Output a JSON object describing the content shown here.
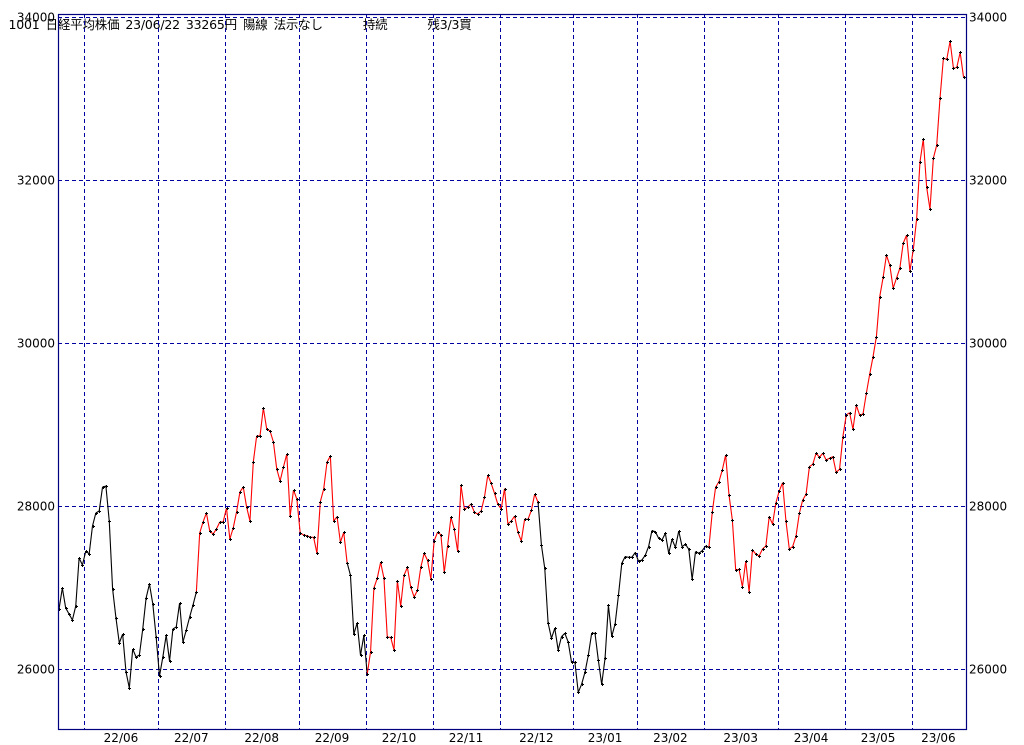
{
  "header": {
    "code": "1001",
    "name": "日経平均株価",
    "date": "23/06/22",
    "price": "33265円",
    "candle": "陽線",
    "signal": "法示なし",
    "state": "持続",
    "remaining": "残3/3買"
  },
  "chart_data": {
    "type": "line",
    "title": "",
    "xlabel": "",
    "ylabel": "",
    "ylim": [
      25260,
      34040
    ],
    "yticks": [
      26000,
      28000,
      30000,
      32000,
      34000
    ],
    "ytick_labels": [
      "26000",
      "28000",
      "30000",
      "32000",
      "34000"
    ],
    "x_tick_labels": [
      "22/06",
      "22/07",
      "22/08",
      "22/09",
      "22/10",
      "22/11",
      "22/12",
      "23/01",
      "23/02",
      "23/03",
      "23/04",
      "23/05",
      "23/06"
    ],
    "month_start_indices": [
      8,
      30,
      50,
      72,
      92,
      112,
      132,
      154,
      173,
      193,
      215,
      235,
      255
    ],
    "grid": true,
    "markers": "plus",
    "colors": {
      "up": "#ff0000",
      "down": "#000000",
      "grid": "#0000a0",
      "frame": "#000080",
      "marker": "#000000"
    },
    "segments": [
      {
        "trend": "down",
        "values": [
          26733,
          26994,
          26748,
          26675,
          26601,
          26773,
          27362,
          27276,
          27448,
          27411,
          27755,
          27914,
          27939,
          28233,
          28245,
          27816,
          26982,
          26626,
          26319,
          26429,
          25963,
          25767,
          26245,
          26147,
          26172,
          26491,
          26871,
          27043,
          26798,
          26392,
          25914,
          26147,
          26417,
          26098,
          26491,
          26515,
          26810,
          26331,
          26478,
          26638,
          26785,
          26945
        ]
      },
      {
        "trend": "up",
        "values": [
          27669,
          27804,
          27914,
          27693,
          27656,
          27718,
          27804,
          27804,
          27975,
          27595,
          27730,
          27926,
          28172,
          28233,
          27988,
          27816,
          28540,
          28859,
          28859,
          29203,
          28945,
          28920,
          28785,
          28454,
          28307,
          28479,
          28638,
          27877,
          28196,
          28086,
          27669,
          27644,
          27636,
          27616,
          27616,
          27420,
          28053,
          28205,
          28536,
          28613,
          27816,
          27869,
          27555,
          27677,
          27305
        ]
      },
      {
        "trend": "down",
        "values": [
          27150,
          26429,
          26564,
          26168,
          26413,
          25935
        ]
      },
      {
        "trend": "up",
        "values": [
          26209,
          26994,
          27113,
          27309,
          27113,
          26389,
          26389,
          26233,
          27084,
          26773,
          27150,
          27248,
          27003,
          26884,
          26966,
          27248,
          27420,
          27334,
          27104,
          27575,
          27677,
          27648,
          27187,
          27513,
          27861,
          27714,
          27444,
          28254,
          27963,
          27984,
          28025,
          27922,
          27902,
          27939,
          28107,
          28380,
          28278,
          28156,
          28021,
          27963,
          28213,
          27779,
          27816,
          27877,
          27677,
          27571,
          27840,
          27836,
          27947,
          28147,
          28045
        ]
      },
      {
        "trend": "down",
        "values": [
          27522,
          27236,
          26564,
          26377,
          26499,
          26233,
          26397,
          26438,
          26331,
          26082,
          26082,
          25714,
          25812,
          25959,
          26168,
          26438,
          26438,
          26107,
          25812,
          26131,
          26781,
          26401,
          26552,
          26904,
          27297,
          27379,
          27371,
          27371,
          27428,
          27322,
          27338,
          27395,
          27502,
          27698,
          27685,
          27604,
          27583,
          27665,
          27420,
          27591,
          27493,
          27693,
          27502,
          27530,
          27469,
          27101,
          27440,
          27420,
          27452,
          27509,
          27493
        ]
      },
      {
        "trend": "up",
        "values": [
          27922,
          28230,
          28299,
          28442,
          28626,
          28135,
          27828,
          27214,
          27223,
          27010,
          27322,
          26945,
          27460,
          27411,
          27387,
          27473,
          27509,
          27869,
          27779,
          28040,
          28184,
          28286,
          27816,
          27473,
          27502,
          27632,
          27910,
          28074,
          28144,
          28483,
          28512,
          28647,
          28598,
          28647,
          28565,
          28586,
          28606,
          28413,
          28450,
          28851,
          29117,
          29145,
          28941,
          29236,
          29117,
          29129,
          29383,
          29617,
          29833,
          30078,
          30569,
          30804,
          31078,
          30955,
          30673,
          30796,
          30918,
          31224,
          31322,
          30884,
          31141,
          31518,
          32218,
          32503,
          31911,
          31641,
          32267,
          32426,
          33010,
          33493,
          33481,
          33702,
          33370,
          33382,
          33566,
          33265
        ]
      }
    ]
  }
}
